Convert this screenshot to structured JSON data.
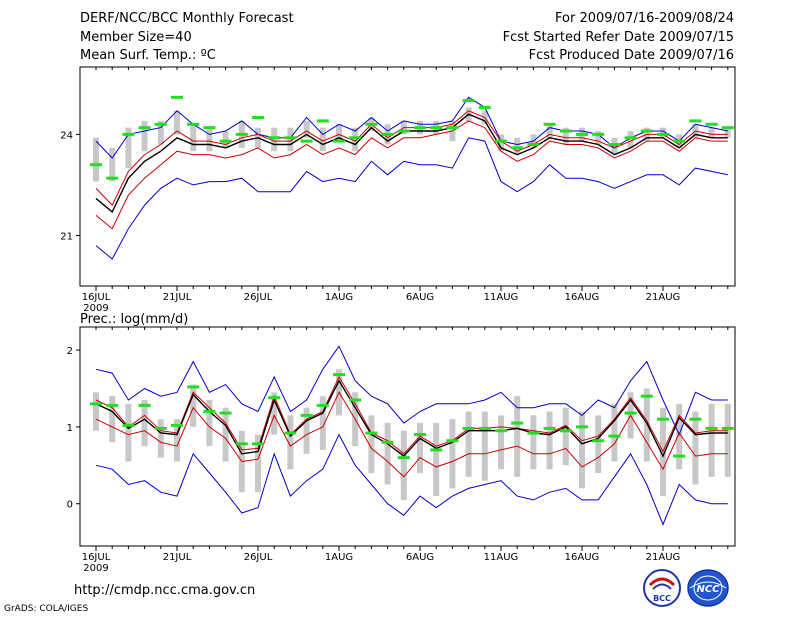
{
  "header": {
    "title": "DERF/NCC/BCC Monthly Forecast",
    "member_size": "Member Size=40",
    "variable": "Mean Surf. Temp.: ºC",
    "period": "For 2009/07/16-2009/08/24",
    "fcst_started": "Fcst Started Refer Date 2009/07/15",
    "fcst_produced": "Fcst Produced Date 2009/07/16"
  },
  "footer": {
    "url": "http://cmdp.ncc.cma.gov.cn",
    "credit": "GrADS: COLA/IGES",
    "logo_bcc": "BCC",
    "logo_ncc": "NCC"
  },
  "colors": {
    "mean": "#000000",
    "spread": "#cc0000",
    "extreme": "#0000cc",
    "box": "#c8c8c8",
    "marker": "#22dd22"
  },
  "chart_data": [
    {
      "type": "line",
      "title": "Mean Surf. Temp.: ºC",
      "x_tick_labels": [
        "16JUL",
        "21JUL",
        "26JUL",
        "1AUG",
        "6AUG",
        "11AUG",
        "16AUG",
        "21AUG"
      ],
      "x_year_label": "2009",
      "ylim": [
        19.5,
        26.0
      ],
      "y_ticks": [
        21,
        24
      ],
      "x": [
        1,
        2,
        3,
        4,
        5,
        6,
        7,
        8,
        9,
        10,
        11,
        12,
        13,
        14,
        15,
        16,
        17,
        18,
        19,
        20,
        21,
        22,
        23,
        24,
        25,
        26,
        27,
        28,
        29,
        30,
        31,
        32,
        33,
        34,
        35,
        36,
        37,
        38,
        39,
        40
      ],
      "series": [
        {
          "name": "max",
          "values": [
            23.8,
            23.3,
            24.0,
            24.1,
            24.2,
            24.7,
            24.3,
            24.0,
            24.1,
            24.4,
            24.0,
            23.9,
            23.9,
            24.5,
            24.0,
            24.3,
            24.1,
            24.5,
            24.1,
            24.4,
            24.3,
            24.3,
            24.4,
            25.1,
            24.8,
            23.8,
            23.7,
            23.8,
            24.2,
            24.1,
            24.1,
            24.0,
            23.6,
            23.9,
            24.1,
            24.1,
            23.8,
            24.3,
            24.2,
            24.1
          ]
        },
        {
          "name": "upper",
          "values": [
            22.4,
            21.9,
            22.9,
            23.4,
            23.7,
            24.1,
            23.8,
            23.8,
            23.7,
            23.9,
            24.0,
            23.8,
            23.8,
            24.1,
            23.8,
            24.0,
            23.8,
            24.3,
            23.9,
            24.2,
            24.2,
            24.2,
            24.3,
            24.7,
            24.5,
            23.8,
            23.5,
            23.7,
            24.0,
            23.9,
            23.9,
            23.8,
            23.6,
            23.8,
            24.0,
            24.0,
            23.7,
            24.1,
            24.0,
            24.0
          ]
        },
        {
          "name": "mean",
          "values": [
            22.1,
            21.7,
            22.7,
            23.2,
            23.5,
            23.9,
            23.7,
            23.7,
            23.6,
            23.8,
            23.9,
            23.7,
            23.7,
            24.0,
            23.7,
            23.9,
            23.7,
            24.2,
            23.8,
            24.1,
            24.1,
            24.1,
            24.2,
            24.6,
            24.4,
            23.6,
            23.4,
            23.6,
            23.9,
            23.8,
            23.8,
            23.7,
            23.4,
            23.6,
            23.9,
            23.9,
            23.6,
            24.0,
            23.9,
            23.9
          ]
        },
        {
          "name": "lower",
          "values": [
            21.6,
            21.2,
            22.2,
            22.7,
            23.1,
            23.5,
            23.4,
            23.4,
            23.3,
            23.4,
            23.6,
            23.3,
            23.4,
            23.7,
            23.4,
            23.6,
            23.4,
            23.9,
            23.6,
            23.9,
            23.9,
            24.0,
            24.1,
            24.4,
            24.2,
            23.5,
            23.2,
            23.4,
            23.8,
            23.7,
            23.7,
            23.6,
            23.3,
            23.5,
            23.8,
            23.8,
            23.5,
            23.9,
            23.8,
            23.8
          ]
        },
        {
          "name": "min",
          "values": [
            20.7,
            20.3,
            21.2,
            21.9,
            22.4,
            22.7,
            22.5,
            22.6,
            22.6,
            22.7,
            22.3,
            22.3,
            22.3,
            22.9,
            22.6,
            22.7,
            22.6,
            23.2,
            22.8,
            23.2,
            23.1,
            23.1,
            23.0,
            23.9,
            23.8,
            22.6,
            22.3,
            22.6,
            23.1,
            22.7,
            22.7,
            22.6,
            22.4,
            22.6,
            22.8,
            22.8,
            22.5,
            23.0,
            22.9,
            22.8
          ]
        }
      ],
      "observed": [
        23.1,
        22.7,
        24.0,
        24.2,
        24.3,
        25.1,
        24.3,
        24.2,
        23.8,
        24.0,
        24.5,
        23.9,
        23.9,
        23.8,
        24.4,
        23.8,
        23.9,
        24.3,
        24.0,
        24.1,
        24.2,
        24.2,
        24.2,
        25.0,
        24.8,
        23.8,
        23.6,
        23.7,
        24.3,
        24.1,
        24.0,
        24.0,
        23.7,
        23.9,
        24.1,
        24.0,
        23.8,
        24.4,
        24.3,
        24.2
      ],
      "box_low": [
        22.6,
        22.6,
        23.0,
        23.5,
        23.7,
        24.0,
        23.5,
        23.5,
        23.6,
        23.6,
        23.6,
        23.5,
        23.5,
        23.9,
        23.5,
        23.8,
        23.5,
        24.1,
        23.7,
        24.0,
        24.0,
        24.0,
        23.8,
        24.4,
        24.3,
        23.5,
        23.4,
        23.6,
        23.9,
        23.7,
        23.8,
        23.7,
        23.4,
        23.6,
        23.8,
        23.9,
        23.6,
        23.9,
        23.9,
        23.9
      ],
      "box_high": [
        23.9,
        23.6,
        24.2,
        24.4,
        24.4,
        24.7,
        24.3,
        24.2,
        24.1,
        24.4,
        24.2,
        24.2,
        24.2,
        24.4,
        24.2,
        24.3,
        24.2,
        24.5,
        24.3,
        24.4,
        24.4,
        24.4,
        24.4,
        24.8,
        24.7,
        24.0,
        23.9,
        24.0,
        24.3,
        24.2,
        24.2,
        24.1,
        23.9,
        24.1,
        24.2,
        24.2,
        24.0,
        24.3,
        24.2,
        24.2
      ]
    },
    {
      "type": "line",
      "title": "Prec.: log(mm/d)",
      "x_tick_labels": [
        "16JUL",
        "21JUL",
        "26JUL",
        "1AUG",
        "6AUG",
        "11AUG",
        "16AUG",
        "21AUG"
      ],
      "x_year_label": "2009",
      "ylim": [
        -0.55,
        2.3
      ],
      "y_ticks": [
        0,
        1,
        2
      ],
      "x": [
        1,
        2,
        3,
        4,
        5,
        6,
        7,
        8,
        9,
        10,
        11,
        12,
        13,
        14,
        15,
        16,
        17,
        18,
        19,
        20,
        21,
        22,
        23,
        24,
        25,
        26,
        27,
        28,
        29,
        30,
        31,
        32,
        33,
        34,
        35,
        36,
        37,
        38,
        39,
        40
      ],
      "series": [
        {
          "name": "max",
          "values": [
            1.75,
            1.7,
            1.35,
            1.5,
            1.4,
            1.45,
            1.85,
            1.45,
            1.55,
            1.3,
            1.2,
            1.65,
            1.2,
            1.35,
            1.75,
            2.05,
            1.6,
            1.4,
            1.3,
            1.05,
            1.2,
            1.3,
            1.3,
            1.3,
            1.35,
            1.45,
            1.25,
            1.25,
            1.3,
            1.3,
            1.15,
            1.35,
            1.25,
            1.6,
            1.85,
            1.35,
            0.9,
            1.45,
            1.35,
            1.35
          ]
        },
        {
          "name": "upper",
          "values": [
            1.35,
            1.25,
            1.0,
            1.15,
            0.95,
            0.92,
            1.45,
            1.25,
            1.05,
            0.7,
            0.72,
            1.4,
            0.9,
            1.1,
            1.2,
            1.65,
            1.3,
            0.92,
            0.82,
            0.65,
            0.88,
            0.75,
            0.82,
            0.98,
            0.98,
            1.0,
            0.98,
            0.95,
            0.92,
            1.02,
            0.82,
            0.88,
            1.1,
            1.38,
            1.08,
            0.68,
            1.15,
            0.92,
            0.95,
            0.95
          ]
        },
        {
          "name": "mean",
          "values": [
            1.3,
            1.2,
            0.98,
            1.1,
            0.92,
            0.9,
            1.42,
            1.2,
            1.02,
            0.65,
            0.68,
            1.35,
            0.88,
            1.08,
            1.18,
            1.6,
            1.25,
            0.9,
            0.78,
            0.62,
            0.85,
            0.72,
            0.8,
            0.95,
            0.95,
            0.95,
            0.98,
            0.92,
            0.9,
            1.0,
            0.78,
            0.85,
            1.08,
            1.35,
            1.05,
            0.62,
            1.12,
            0.9,
            0.92,
            0.92
          ]
        },
        {
          "name": "lower",
          "values": [
            1.1,
            1.0,
            0.9,
            0.95,
            0.8,
            0.75,
            1.25,
            1.0,
            0.85,
            0.55,
            0.58,
            1.15,
            0.75,
            0.9,
            1.0,
            1.45,
            1.1,
            0.72,
            0.55,
            0.35,
            0.6,
            0.48,
            0.55,
            0.65,
            0.65,
            0.7,
            0.75,
            0.65,
            0.65,
            0.72,
            0.48,
            0.6,
            0.78,
            1.15,
            0.8,
            0.45,
            0.92,
            0.62,
            0.65,
            0.65
          ]
        },
        {
          "name": "min",
          "values": [
            0.5,
            0.45,
            0.25,
            0.3,
            0.15,
            0.1,
            0.65,
            0.4,
            0.15,
            -0.12,
            -0.05,
            0.65,
            0.1,
            0.3,
            0.45,
            0.9,
            0.5,
            0.25,
            0.0,
            -0.15,
            0.1,
            -0.05,
            0.1,
            0.2,
            0.25,
            0.3,
            0.1,
            0.05,
            0.15,
            0.2,
            0.05,
            0.05,
            0.35,
            0.65,
            0.25,
            -0.27,
            0.25,
            0.05,
            0.0,
            0.0
          ]
        }
      ],
      "observed": [
        1.3,
        1.28,
        1.02,
        1.28,
        0.98,
        1.02,
        1.52,
        1.2,
        1.18,
        0.78,
        0.78,
        1.38,
        0.92,
        1.15,
        1.28,
        1.68,
        1.35,
        0.92,
        0.8,
        0.6,
        0.9,
        0.7,
        0.82,
        0.98,
        0.98,
        0.95,
        1.05,
        0.92,
        0.98,
        0.95,
        1.0,
        0.82,
        0.88,
        1.18,
        1.4,
        1.1,
        0.62,
        1.1,
        0.98,
        0.98
      ],
      "box_low": [
        0.95,
        0.8,
        0.55,
        0.75,
        0.6,
        0.55,
        1.0,
        0.75,
        0.55,
        0.15,
        0.15,
        0.9,
        0.45,
        0.65,
        0.7,
        1.15,
        0.75,
        0.4,
        0.25,
        0.05,
        0.4,
        0.1,
        0.2,
        0.35,
        0.3,
        0.45,
        0.35,
        0.45,
        0.45,
        0.5,
        0.2,
        0.4,
        0.55,
        0.85,
        0.55,
        0.1,
        0.45,
        0.25,
        0.35,
        0.35
      ],
      "box_high": [
        1.45,
        1.4,
        1.3,
        1.35,
        1.1,
        1.1,
        1.55,
        1.35,
        1.25,
        0.95,
        0.9,
        1.45,
        1.15,
        1.25,
        1.4,
        1.75,
        1.45,
        1.15,
        1.05,
        0.95,
        1.05,
        1.05,
        1.1,
        1.2,
        1.2,
        1.15,
        1.4,
        1.15,
        1.2,
        1.25,
        1.2,
        1.15,
        1.3,
        1.45,
        1.5,
        1.25,
        1.3,
        1.2,
        1.3,
        1.3
      ]
    }
  ]
}
